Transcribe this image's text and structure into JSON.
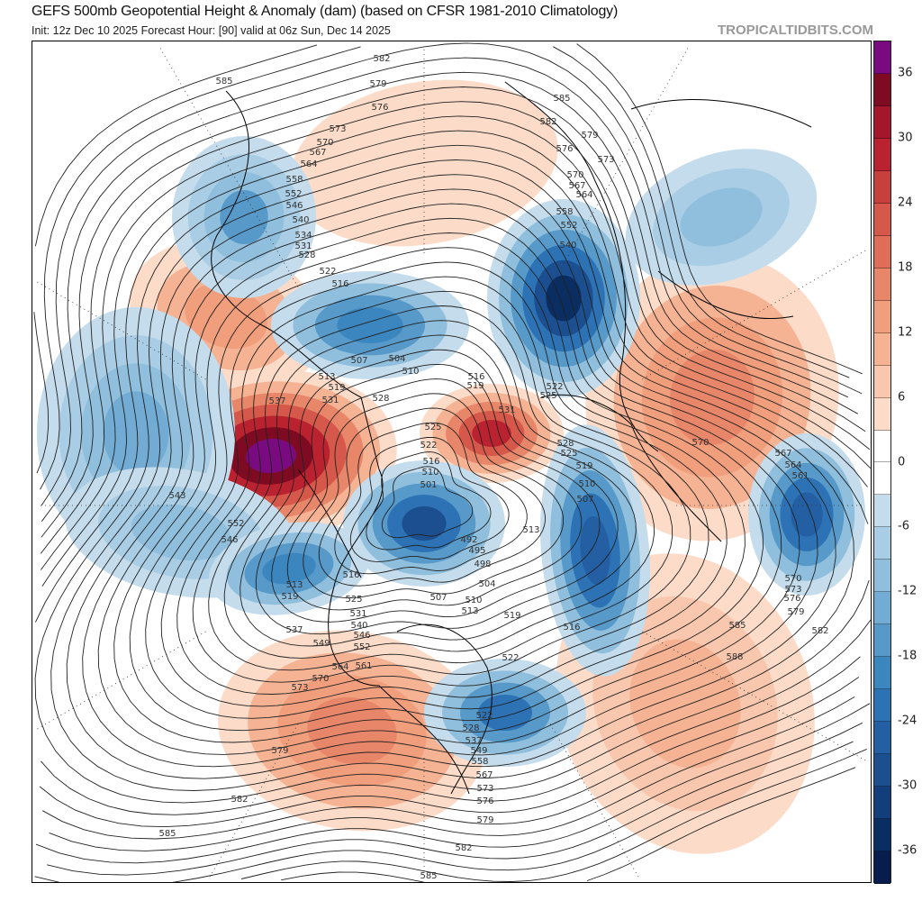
{
  "header": {
    "title": "GEFS 500mb Geopotential Height & Anomaly (dam) (based on CFSR 1981-2010 Climatology)",
    "subtitle": "Init: 12z Dec 10 2025   Forecast Hour: [90]   valid at 06z Sun, Dec 14 2025",
    "brand": "TROPICALTIDBITS.COM"
  },
  "colorbar": {
    "ticks": [
      "36",
      "30",
      "24",
      "18",
      "12",
      "6",
      "0",
      "-6",
      "-12",
      "-18",
      "-24",
      "-30",
      "-36"
    ],
    "colors": [
      "#7a0a7f",
      "#7e0b22",
      "#a3162b",
      "#bb2230",
      "#c8403d",
      "#d5584a",
      "#e06d57",
      "#e8866a",
      "#f09e7c",
      "#f5b394",
      "#f8c7ad",
      "#fcdcc9",
      "#ffffff",
      "#ffffff",
      "#c4dcec",
      "#a8cde4",
      "#8fbfdd",
      "#72acd4",
      "#5799c9",
      "#3c86bf",
      "#2c72b4",
      "#245fa4",
      "#1b4f90",
      "#123f7b",
      "#0a2d62",
      "#081c4e"
    ]
  },
  "map": {
    "contour_labels": [
      "585",
      "582",
      "579",
      "576",
      "573",
      "570",
      "567",
      "564",
      "558",
      "552",
      "546",
      "540",
      "534",
      "531",
      "528",
      "522",
      "516",
      "507",
      "504",
      "510",
      "513",
      "519",
      "531",
      "528",
      "537",
      "525",
      "531",
      "522",
      "516",
      "510",
      "501",
      "543",
      "552",
      "546",
      "516",
      "513",
      "519",
      "537",
      "549",
      "570",
      "573",
      "579",
      "582",
      "585",
      "585",
      "582",
      "579",
      "576",
      "573",
      "567",
      "558",
      "549",
      "537",
      "528",
      "522",
      "588",
      "585",
      "582",
      "579",
      "576",
      "573",
      "570",
      "567",
      "564",
      "561",
      "570",
      "585",
      "582",
      "579",
      "576",
      "573",
      "570",
      "567",
      "564",
      "558",
      "552",
      "540",
      "522",
      "525",
      "528",
      "525",
      "519",
      "510",
      "507",
      "513",
      "516",
      "519",
      "522",
      "504",
      "498",
      "495",
      "492",
      "507",
      "510",
      "513",
      "516",
      "519",
      "561",
      "564",
      "552",
      "546",
      "540",
      "531",
      "525"
    ]
  }
}
